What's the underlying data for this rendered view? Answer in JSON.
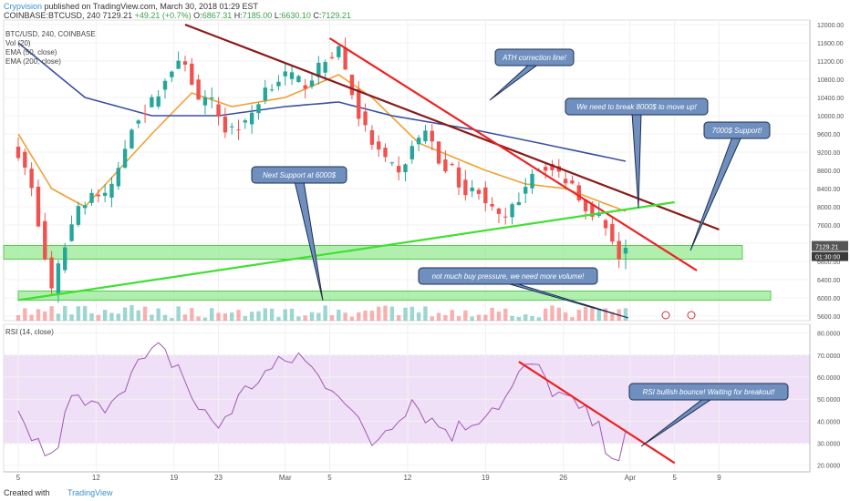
{
  "header": {
    "author": "Crypvision",
    "published": " published on TradingView.com, March 30, 2018 01:29 EST",
    "symbol": "COINBASE:BTCUSD, 240",
    "last": "7129.21",
    "change": "+49.21 (+0.7%)",
    "open_label": "O:",
    "open": "6867.31",
    "high_label": "H:",
    "high": "7185.00",
    "low_label": "L:",
    "low": "6630.10",
    "close_label": "C:",
    "close": "7129.21"
  },
  "legend": {
    "symbol": "BTC/USD, 240, COINBASE",
    "vol": "Vol (20)",
    "ema50": "EMA (50, close)",
    "ema200": "EMA (200, close)",
    "rsi": "RSI (14, close)"
  },
  "footer": {
    "created": "Created with",
    "brand": "TradingView"
  },
  "colors": {
    "up": "#26a69a",
    "down": "#ef5350",
    "ema50": "#f0a030",
    "ema200": "#3b4fa0",
    "ath_line": "#8b1a1a",
    "resistance": "#ee2222",
    "support_line": "#3fe030",
    "zone": "#8fe88a",
    "rsi": "#a05ab0",
    "rsi_band": "#efe0f7",
    "callout": "#6f8fbf"
  },
  "chart_data": [
    {
      "type": "candlestick",
      "title": "BTC/USD, 240, COINBASE",
      "x_ticks": [
        "5",
        "12",
        "19",
        "23",
        "Mar",
        "5",
        "12",
        "19",
        "26",
        "Apr",
        "5",
        "9"
      ],
      "y_ticks": [
        "12000.00",
        "11600.00",
        "11200.00",
        "10800.00",
        "10400.00",
        "10000.00",
        "9600.00",
        "9200.00",
        "8800.00",
        "8400.00",
        "8000.00",
        "7600.00",
        "7200.00",
        "6800.00",
        "6400.00",
        "6000.00",
        "5600.00"
      ],
      "ylim": [
        5500,
        12100
      ],
      "last_price_label": "7129.21",
      "countdown_label": "01:30:00",
      "close_anchors": [
        [
          0,
          9200
        ],
        [
          2,
          8400
        ],
        [
          3,
          7600
        ],
        [
          5,
          6100
        ],
        [
          7,
          7200
        ],
        [
          9,
          8000
        ],
        [
          11,
          8300
        ],
        [
          13,
          8200
        ],
        [
          15,
          8800
        ],
        [
          17,
          9800
        ],
        [
          20,
          10300
        ],
        [
          23,
          11000
        ],
        [
          25,
          11200
        ],
        [
          27,
          10300
        ],
        [
          29,
          10300
        ],
        [
          31,
          9700
        ],
        [
          34,
          9800
        ],
        [
          37,
          10600
        ],
        [
          40,
          10900
        ],
        [
          43,
          10700
        ],
        [
          46,
          11200
        ],
        [
          48,
          11500
        ],
        [
          49,
          11000
        ],
        [
          51,
          10000
        ],
        [
          53,
          9400
        ],
        [
          55,
          9000
        ],
        [
          57,
          8700
        ],
        [
          59,
          9300
        ],
        [
          61,
          9700
        ],
        [
          63,
          9000
        ],
        [
          65,
          8800
        ],
        [
          67,
          8300
        ],
        [
          69,
          8400
        ],
        [
          71,
          7900
        ],
        [
          73,
          7700
        ],
        [
          75,
          8200
        ],
        [
          77,
          8800
        ],
        [
          79,
          8900
        ],
        [
          81,
          8700
        ],
        [
          83,
          8500
        ],
        [
          85,
          8000
        ],
        [
          87,
          7800
        ],
        [
          89,
          7300
        ],
        [
          90,
          6900
        ],
        [
          91,
          7100
        ]
      ],
      "ema50_anchors": [
        [
          0,
          9600
        ],
        [
          5,
          8400
        ],
        [
          10,
          8000
        ],
        [
          20,
          9600
        ],
        [
          26,
          10500
        ],
        [
          32,
          10200
        ],
        [
          40,
          10400
        ],
        [
          48,
          10900
        ],
        [
          53,
          10400
        ],
        [
          60,
          9400
        ],
        [
          70,
          8800
        ],
        [
          76,
          8500
        ],
        [
          82,
          8400
        ],
        [
          91,
          7900
        ]
      ],
      "ema200_anchors": [
        [
          0,
          11600
        ],
        [
          10,
          10400
        ],
        [
          20,
          10000
        ],
        [
          30,
          10000
        ],
        [
          40,
          10200
        ],
        [
          48,
          10300
        ],
        [
          56,
          10000
        ],
        [
          68,
          9700
        ],
        [
          78,
          9400
        ],
        [
          91,
          9000
        ]
      ],
      "volume_note": "Vol (20)",
      "horizontal_zones": [
        {
          "name": "7000$ Support",
          "low": 6850,
          "high": 7150
        },
        {
          "name": "6000$ Support",
          "low": 5950,
          "high": 6150
        }
      ],
      "trendlines": [
        {
          "name": "ATH correction line",
          "from": [
            "Feb 20",
            12000
          ],
          "to": [
            "Apr 9",
            7500
          ]
        },
        {
          "name": "Resistance",
          "from": [
            "Mar 5",
            11700
          ],
          "to": [
            "Apr 7",
            6600
          ]
        },
        {
          "name": "Support 6000 to 8100",
          "from": [
            "Feb 5",
            5950
          ],
          "to": [
            "Apr 5",
            8100
          ]
        }
      ],
      "annotations": [
        "ATH correction line!",
        "We need to break 8000$ to move up!",
        "7000$ Support!",
        "Next Support at 6000$",
        "not much buy pressure, we need more volume!"
      ]
    },
    {
      "type": "line",
      "title": "RSI (14, close)",
      "y_ticks": [
        "80.0000",
        "70.0000",
        "60.0000",
        "50.0000",
        "40.0000",
        "30.0000",
        "20.0000"
      ],
      "ylim": [
        17,
        84
      ],
      "band": [
        30,
        70
      ],
      "rsi_anchors": [
        [
          0,
          40
        ],
        [
          3,
          30
        ],
        [
          5,
          22
        ],
        [
          8,
          50
        ],
        [
          12,
          45
        ],
        [
          15,
          55
        ],
        [
          18,
          65
        ],
        [
          21,
          72
        ],
        [
          24,
          65
        ],
        [
          27,
          45
        ],
        [
          30,
          38
        ],
        [
          33,
          50
        ],
        [
          36,
          60
        ],
        [
          39,
          65
        ],
        [
          42,
          70
        ],
        [
          45,
          60
        ],
        [
          48,
          55
        ],
        [
          51,
          38
        ],
        [
          53,
          30
        ],
        [
          56,
          40
        ],
        [
          59,
          50
        ],
        [
          62,
          40
        ],
        [
          65,
          35
        ],
        [
          68,
          40
        ],
        [
          70,
          45
        ],
        [
          73,
          50
        ],
        [
          75,
          60
        ],
        [
          77,
          66
        ],
        [
          79,
          58
        ],
        [
          81,
          52
        ],
        [
          84,
          45
        ],
        [
          86,
          40
        ],
        [
          88,
          30
        ],
        [
          90,
          24
        ],
        [
          91,
          32
        ]
      ],
      "trendline": {
        "name": "RSI downtrend",
        "from": [
          "Mar 22",
          67
        ],
        "to": [
          "Apr 5",
          21
        ]
      },
      "annotations": [
        "RSI bullish bounce! Waiting for breakout!"
      ]
    }
  ]
}
